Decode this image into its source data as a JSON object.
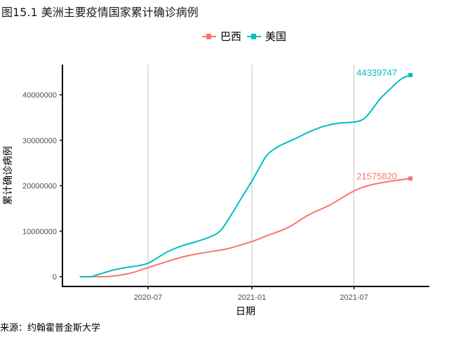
{
  "chart_data": {
    "type": "line",
    "title": "图15.1 美洲主要疫情国家累计确诊病例",
    "xlabel": "日期",
    "ylabel": "累计确诊病例",
    "caption": "来源：约翰霍普金斯大学",
    "x_ticks": [
      "2020-07",
      "2021-01",
      "2021-07"
    ],
    "y_ticks": [
      "0",
      "10000000",
      "20000000",
      "30000000",
      "40000000"
    ],
    "ylim": [
      0,
      46000000
    ],
    "xlim": [
      "2020-02-05",
      "2021-10-31"
    ],
    "grid": "vertical major x",
    "legend_position": "top",
    "series": [
      {
        "name": "巴西",
        "color": "#F8766D",
        "end_label": "21575820",
        "x": [
          "2020-03-02",
          "2020-04-16",
          "2020-05-11",
          "2020-06-05",
          "2020-07-01",
          "2020-07-25",
          "2020-08-31",
          "2020-10-07",
          "2020-11-14",
          "2020-12-08",
          "2021-01-01",
          "2021-01-27",
          "2021-03-06",
          "2021-04-12",
          "2021-05-19",
          "2021-07-01",
          "2021-07-29",
          "2021-09-05",
          "2021-10-09"
        ],
        "values": [
          0,
          0,
          300000,
          930000,
          2000000,
          2930000,
          4320000,
          5250000,
          6000000,
          6800000,
          7720000,
          8960000,
          10800000,
          13600000,
          15750000,
          18840000,
          20100000,
          21000000,
          21575820
        ]
      },
      {
        "name": "美国",
        "color": "#00BFC4",
        "end_label": "44339747",
        "x": [
          "2020-03-02",
          "2020-03-22",
          "2020-04-04",
          "2020-04-29",
          "2020-05-23",
          "2020-06-17",
          "2020-07-01",
          "2020-07-12",
          "2020-08-06",
          "2020-08-31",
          "2020-09-25",
          "2020-10-20",
          "2020-11-07",
          "2020-11-26",
          "2020-12-15",
          "2021-01-01",
          "2021-01-15",
          "2021-01-27",
          "2021-02-09",
          "2021-02-21",
          "2021-03-18",
          "2021-04-12",
          "2021-05-07",
          "2021-06-01",
          "2021-07-01",
          "2021-07-17",
          "2021-07-29",
          "2021-08-17",
          "2021-09-05",
          "2021-09-23",
          "2021-10-09"
        ],
        "values": [
          0,
          0,
          460000,
          1390000,
          2010000,
          2470000,
          2940000,
          3710000,
          5560000,
          6800000,
          7720000,
          8800000,
          10200000,
          13700000,
          17600000,
          21000000,
          24100000,
          26600000,
          28000000,
          28900000,
          30300000,
          31800000,
          33000000,
          33700000,
          34000000,
          34600000,
          36100000,
          39200000,
          41500000,
          43500000,
          44339747
        ]
      }
    ]
  }
}
